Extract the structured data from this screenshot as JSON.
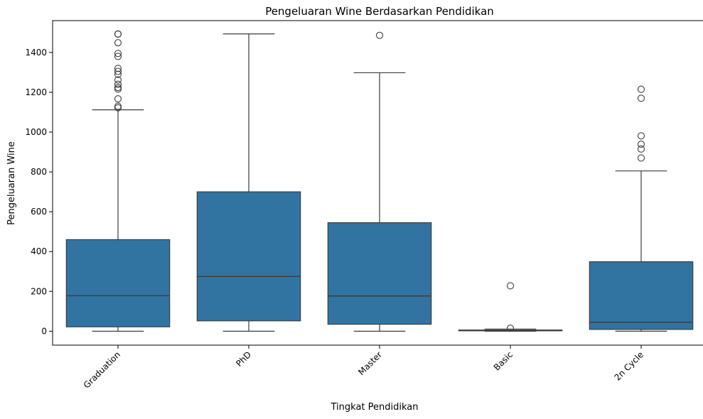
{
  "chart_data": {
    "type": "box",
    "title": "Pengeluaran Wine Berdasarkan Pendidikan",
    "xlabel": "Tingkat Pendidikan",
    "ylabel": "Pengeluaran Wine",
    "ylim": [
      -70,
      1560
    ],
    "yticks": [
      0,
      200,
      400,
      600,
      800,
      1000,
      1200,
      1400
    ],
    "box_color": "#3274a1",
    "grid": false,
    "categories": [
      "Graduation",
      "PhD",
      "Master",
      "Basic",
      "2n Cycle"
    ],
    "boxes": [
      {
        "category": "Graduation",
        "whislo": 0,
        "q1": 22,
        "median": 178,
        "q3": 460,
        "whishi": 1112,
        "fliers": [
          1122,
          1130,
          1167,
          1216,
          1224,
          1240,
          1262,
          1290,
          1305,
          1320,
          1380,
          1395,
          1449,
          1492,
          1493
        ]
      },
      {
        "category": "PhD",
        "whislo": 0,
        "q1": 52,
        "median": 275,
        "q3": 700,
        "whishi": 1493,
        "fliers": []
      },
      {
        "category": "Master",
        "whislo": 0,
        "q1": 35,
        "median": 177,
        "q3": 545,
        "whishi": 1298,
        "fliers": [
          1486
        ]
      },
      {
        "category": "Basic",
        "whislo": 0,
        "q1": 2,
        "median": 4,
        "q3": 6,
        "whishi": 11,
        "fliers": [
          15,
          228
        ]
      },
      {
        "category": "2n Cycle",
        "whislo": 0,
        "q1": 9,
        "median": 45,
        "q3": 349,
        "whishi": 805,
        "fliers": [
          870,
          915,
          939,
          981,
          1170,
          1215
        ]
      }
    ]
  }
}
